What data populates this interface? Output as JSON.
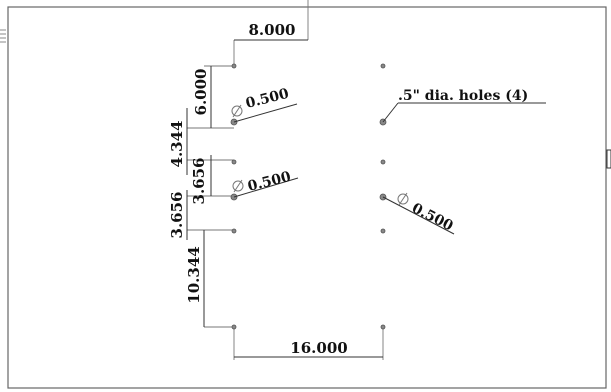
{
  "drawing": {
    "dimensions": {
      "top_width": "8.000",
      "bottom_width": "16.000",
      "v_first": "6.000",
      "v_second": "4.344",
      "v_third": "3.656",
      "v_third_inner": "3.656",
      "v_last": "10.344"
    },
    "hole_callouts": {
      "left_upper": "0.500",
      "left_middle": "0.500",
      "right_middle": "0.500",
      "diameter_symbol": "Ø"
    },
    "note": ".5\" dia. holes (4)"
  }
}
